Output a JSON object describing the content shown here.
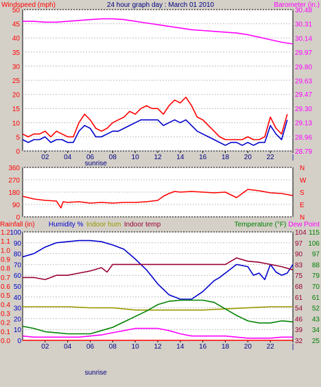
{
  "chart_data": [
    {
      "type": "line",
      "title": "24 hour graph day : March 01 2010",
      "left_axis_label": "Windspeed (mph)",
      "right_axis_label": "Barometer (in.)",
      "x_ticks": [
        "02",
        "04",
        "06",
        "08",
        "10",
        "12",
        "14",
        "16",
        "18",
        "20",
        "22",
        "|"
      ],
      "sunrise_label": "sunrise",
      "sunrise_x": 6.5,
      "xlim": [
        0,
        24
      ],
      "ylim_left": [
        0,
        50
      ],
      "yticks_left": [
        0,
        5,
        10,
        15,
        20,
        25,
        30,
        35,
        40,
        45,
        50
      ],
      "ylim_right": [
        28.79,
        30.48
      ],
      "yticks_right": [
        "28.79",
        "28.96",
        "29.13",
        "29.30",
        "29.47",
        "29.63",
        "29.80",
        "29.97",
        "30.14",
        "30.31",
        "30.48"
      ],
      "colors": {
        "gust": "#ff0000",
        "wind": "#0000cc",
        "barometer": "#ff00ff"
      },
      "series": [
        {
          "key": "gust",
          "axis": "left",
          "x": [
            0,
            0.5,
            1,
            1.5,
            2,
            2.5,
            3,
            3.5,
            4,
            4.5,
            5,
            5.5,
            6,
            6.5,
            7,
            7.5,
            8,
            8.5,
            9,
            9.5,
            10,
            10.5,
            11,
            11.5,
            12,
            12.5,
            13,
            13.5,
            14,
            14.5,
            15,
            15.5,
            16,
            16.5,
            17,
            17.5,
            18,
            18.5,
            19,
            19.5,
            20,
            20.5,
            21,
            21.5,
            22,
            22.5,
            23,
            23.5
          ],
          "y": [
            6,
            5,
            6,
            6,
            7,
            5,
            7,
            6,
            5,
            5,
            10,
            13,
            11,
            8,
            7,
            8,
            10,
            11,
            12,
            14,
            13,
            15,
            16,
            15,
            15,
            13,
            16,
            18,
            17,
            19,
            16,
            12,
            11,
            9,
            7,
            5,
            4,
            4,
            4,
            4,
            5,
            4,
            4,
            5,
            12,
            8,
            6,
            13
          ]
        },
        {
          "key": "wind",
          "axis": "left",
          "x": [
            0,
            0.5,
            1,
            1.5,
            2,
            2.5,
            3,
            3.5,
            4,
            4.5,
            5,
            5.5,
            6,
            6.5,
            7,
            7.5,
            8,
            8.5,
            9,
            9.5,
            10,
            10.5,
            11,
            11.5,
            12,
            12.5,
            13,
            13.5,
            14,
            14.5,
            15,
            15.5,
            16,
            16.5,
            17,
            17.5,
            18,
            18.5,
            19,
            19.5,
            20,
            20.5,
            21,
            21.5,
            22,
            22.5,
            23,
            23.5
          ],
          "y": [
            4,
            3,
            4,
            4,
            5,
            3,
            4,
            4,
            3,
            3,
            7,
            9,
            8,
            5,
            5,
            6,
            7,
            7,
            8,
            9,
            10,
            11,
            11,
            11,
            11,
            9,
            10,
            11,
            10,
            11,
            9,
            7,
            6,
            5,
            4,
            3,
            2,
            3,
            3,
            2,
            3,
            2,
            3,
            3,
            9,
            6,
            4,
            11
          ]
        },
        {
          "key": "barometer",
          "axis": "right",
          "x": [
            0,
            1,
            2,
            3,
            4,
            5,
            6,
            7,
            8,
            9,
            10,
            11,
            12,
            13,
            14,
            15,
            16,
            17,
            18,
            19,
            20,
            21,
            22,
            23,
            24
          ],
          "y": [
            30.34,
            30.34,
            30.33,
            30.33,
            30.34,
            30.35,
            30.36,
            30.37,
            30.37,
            30.36,
            30.34,
            30.32,
            30.3,
            30.28,
            30.26,
            30.24,
            30.23,
            30.22,
            30.21,
            30.2,
            30.18,
            30.15,
            30.12,
            30.09,
            30.07
          ]
        }
      ]
    },
    {
      "type": "line",
      "xlim": [
        0,
        24
      ],
      "ylim": [
        0,
        360
      ],
      "yticks_left": [
        "0",
        "90",
        "180",
        "270",
        "360"
      ],
      "compass_labels": [
        "N",
        "W",
        "S",
        "E",
        "N"
      ],
      "x_ticks": [],
      "colors": {
        "direction": "#ff0000"
      },
      "series": [
        {
          "key": "direction",
          "axis": "left",
          "x": [
            0,
            1,
            2,
            3,
            3.4,
            3.6,
            4,
            5,
            6,
            7,
            8,
            9,
            10,
            11,
            12,
            12.5,
            13,
            13.5,
            14,
            15,
            16,
            17,
            18,
            19,
            19.5,
            20,
            21,
            22,
            23,
            24
          ],
          "y": [
            150,
            130,
            120,
            115,
            65,
            110,
            105,
            110,
            100,
            105,
            100,
            105,
            105,
            110,
            120,
            150,
            170,
            185,
            180,
            185,
            180,
            175,
            180,
            140,
            170,
            200,
            190,
            175,
            170,
            155
          ]
        }
      ]
    },
    {
      "type": "line",
      "left_axis_labels": [
        {
          "text": "Rainfall (in)",
          "color": "#ff0000"
        },
        {
          "text": "Humidity %",
          "color": "#0000cc"
        },
        {
          "text": "Indoor hum",
          "color": "#999900"
        },
        {
          "text": "Indoor temp",
          "color": "#990033"
        }
      ],
      "right_axis_labels": [
        {
          "text": "Temperature (°F)",
          "color": "#008000"
        },
        {
          "text": "Dew Point",
          "color": "#ff00ff"
        }
      ],
      "x_ticks": [
        "02",
        "04",
        "06",
        "08",
        "10",
        "12",
        "14",
        "16",
        "18",
        "20",
        "22",
        "|"
      ],
      "sunrise_label": "sunrise",
      "sunrise_x": 6.5,
      "xlim": [
        0,
        24
      ],
      "rain_ticks": [
        "0.0",
        "0.1",
        "0.2",
        "0.3",
        "0.4",
        "0.5",
        "0.6",
        "0.7",
        "0.8",
        "0.9",
        "1.0",
        "1.1",
        "1.2"
      ],
      "humidity_ticks": [
        "0",
        "10",
        "20",
        "30",
        "40",
        "50",
        "60",
        "70",
        "80",
        "90",
        "100"
      ],
      "temp_right_ticks_inner": [
        "32",
        "39",
        "46",
        "54",
        "61",
        "68",
        "75",
        "83",
        "90",
        "97",
        "104"
      ],
      "temp_right_ticks_outer": [
        "25",
        "34",
        "43",
        "52",
        "61",
        "70",
        "79",
        "88",
        "97",
        "106",
        "115"
      ],
      "ylim_humidity": [
        0,
        100
      ],
      "ylim_rain": [
        0,
        1.2
      ],
      "colors": {
        "rain": "#ff0000",
        "humidity": "#0000cc",
        "indoor_hum": "#999900",
        "indoor_temp": "#990033",
        "temperature": "#008000",
        "dew_point": "#ff00ff"
      },
      "series": [
        {
          "key": "rain",
          "axis": "rain",
          "x": [
            0,
            24
          ],
          "y": [
            0,
            0
          ]
        },
        {
          "key": "humidity",
          "axis": "humidity",
          "x": [
            0,
            1,
            2,
            3,
            4,
            5,
            6,
            7,
            8,
            9,
            10,
            11,
            12,
            13,
            14,
            15,
            16,
            17,
            17.5,
            18,
            19,
            20,
            20.5,
            21,
            21.5,
            22,
            22.5,
            23,
            23.5,
            24
          ],
          "y": [
            77,
            80,
            86,
            90,
            91,
            92,
            92,
            91,
            88,
            84,
            75,
            65,
            52,
            42,
            38,
            38,
            45,
            55,
            58,
            62,
            70,
            68,
            60,
            62,
            56,
            70,
            63,
            60,
            62,
            70
          ]
        },
        {
          "key": "indoor_hum",
          "axis": "humidity",
          "x": [
            0,
            2,
            4,
            6,
            8,
            10,
            12,
            14,
            16,
            18,
            20,
            22,
            24
          ],
          "y": [
            31,
            31,
            31,
            30,
            30,
            28,
            28,
            28,
            28,
            29,
            30,
            31,
            31
          ]
        },
        {
          "key": "indoor_temp",
          "axis": "humidity",
          "x": [
            0,
            1,
            2,
            3,
            4,
            5,
            6,
            7,
            7.5,
            8,
            9,
            10,
            12,
            14,
            16,
            18,
            19,
            20,
            21,
            22,
            23,
            24
          ],
          "y": [
            58,
            58,
            56,
            60,
            60,
            62,
            64,
            67,
            63,
            70,
            70,
            70,
            70,
            70,
            70,
            70,
            76,
            73,
            72,
            70,
            68,
            65
          ]
        },
        {
          "key": "temperature",
          "axis": "humidity",
          "x": [
            0,
            1,
            2,
            3,
            4,
            5,
            6,
            7,
            8,
            9,
            10,
            11,
            12,
            13,
            14,
            15,
            16,
            17,
            18,
            19,
            20,
            21,
            22,
            23,
            24
          ],
          "y": [
            13,
            11,
            8,
            7,
            6,
            6,
            6,
            9,
            12,
            17,
            22,
            27,
            33,
            36,
            37,
            37,
            37,
            35,
            29,
            23,
            18,
            16,
            16,
            18,
            17
          ]
        },
        {
          "key": "dew_point",
          "axis": "humidity",
          "x": [
            0,
            1,
            2,
            3,
            4,
            5,
            6,
            7,
            8,
            9,
            10,
            11,
            12,
            13,
            14,
            15,
            16,
            17,
            18,
            19,
            20,
            21,
            22,
            23,
            24
          ],
          "y": [
            4,
            3,
            3,
            3,
            3,
            3,
            4,
            5,
            7,
            9,
            11,
            11,
            11,
            9,
            6,
            4,
            4,
            4,
            4,
            3,
            2,
            2,
            2,
            3,
            3
          ]
        }
      ]
    }
  ]
}
